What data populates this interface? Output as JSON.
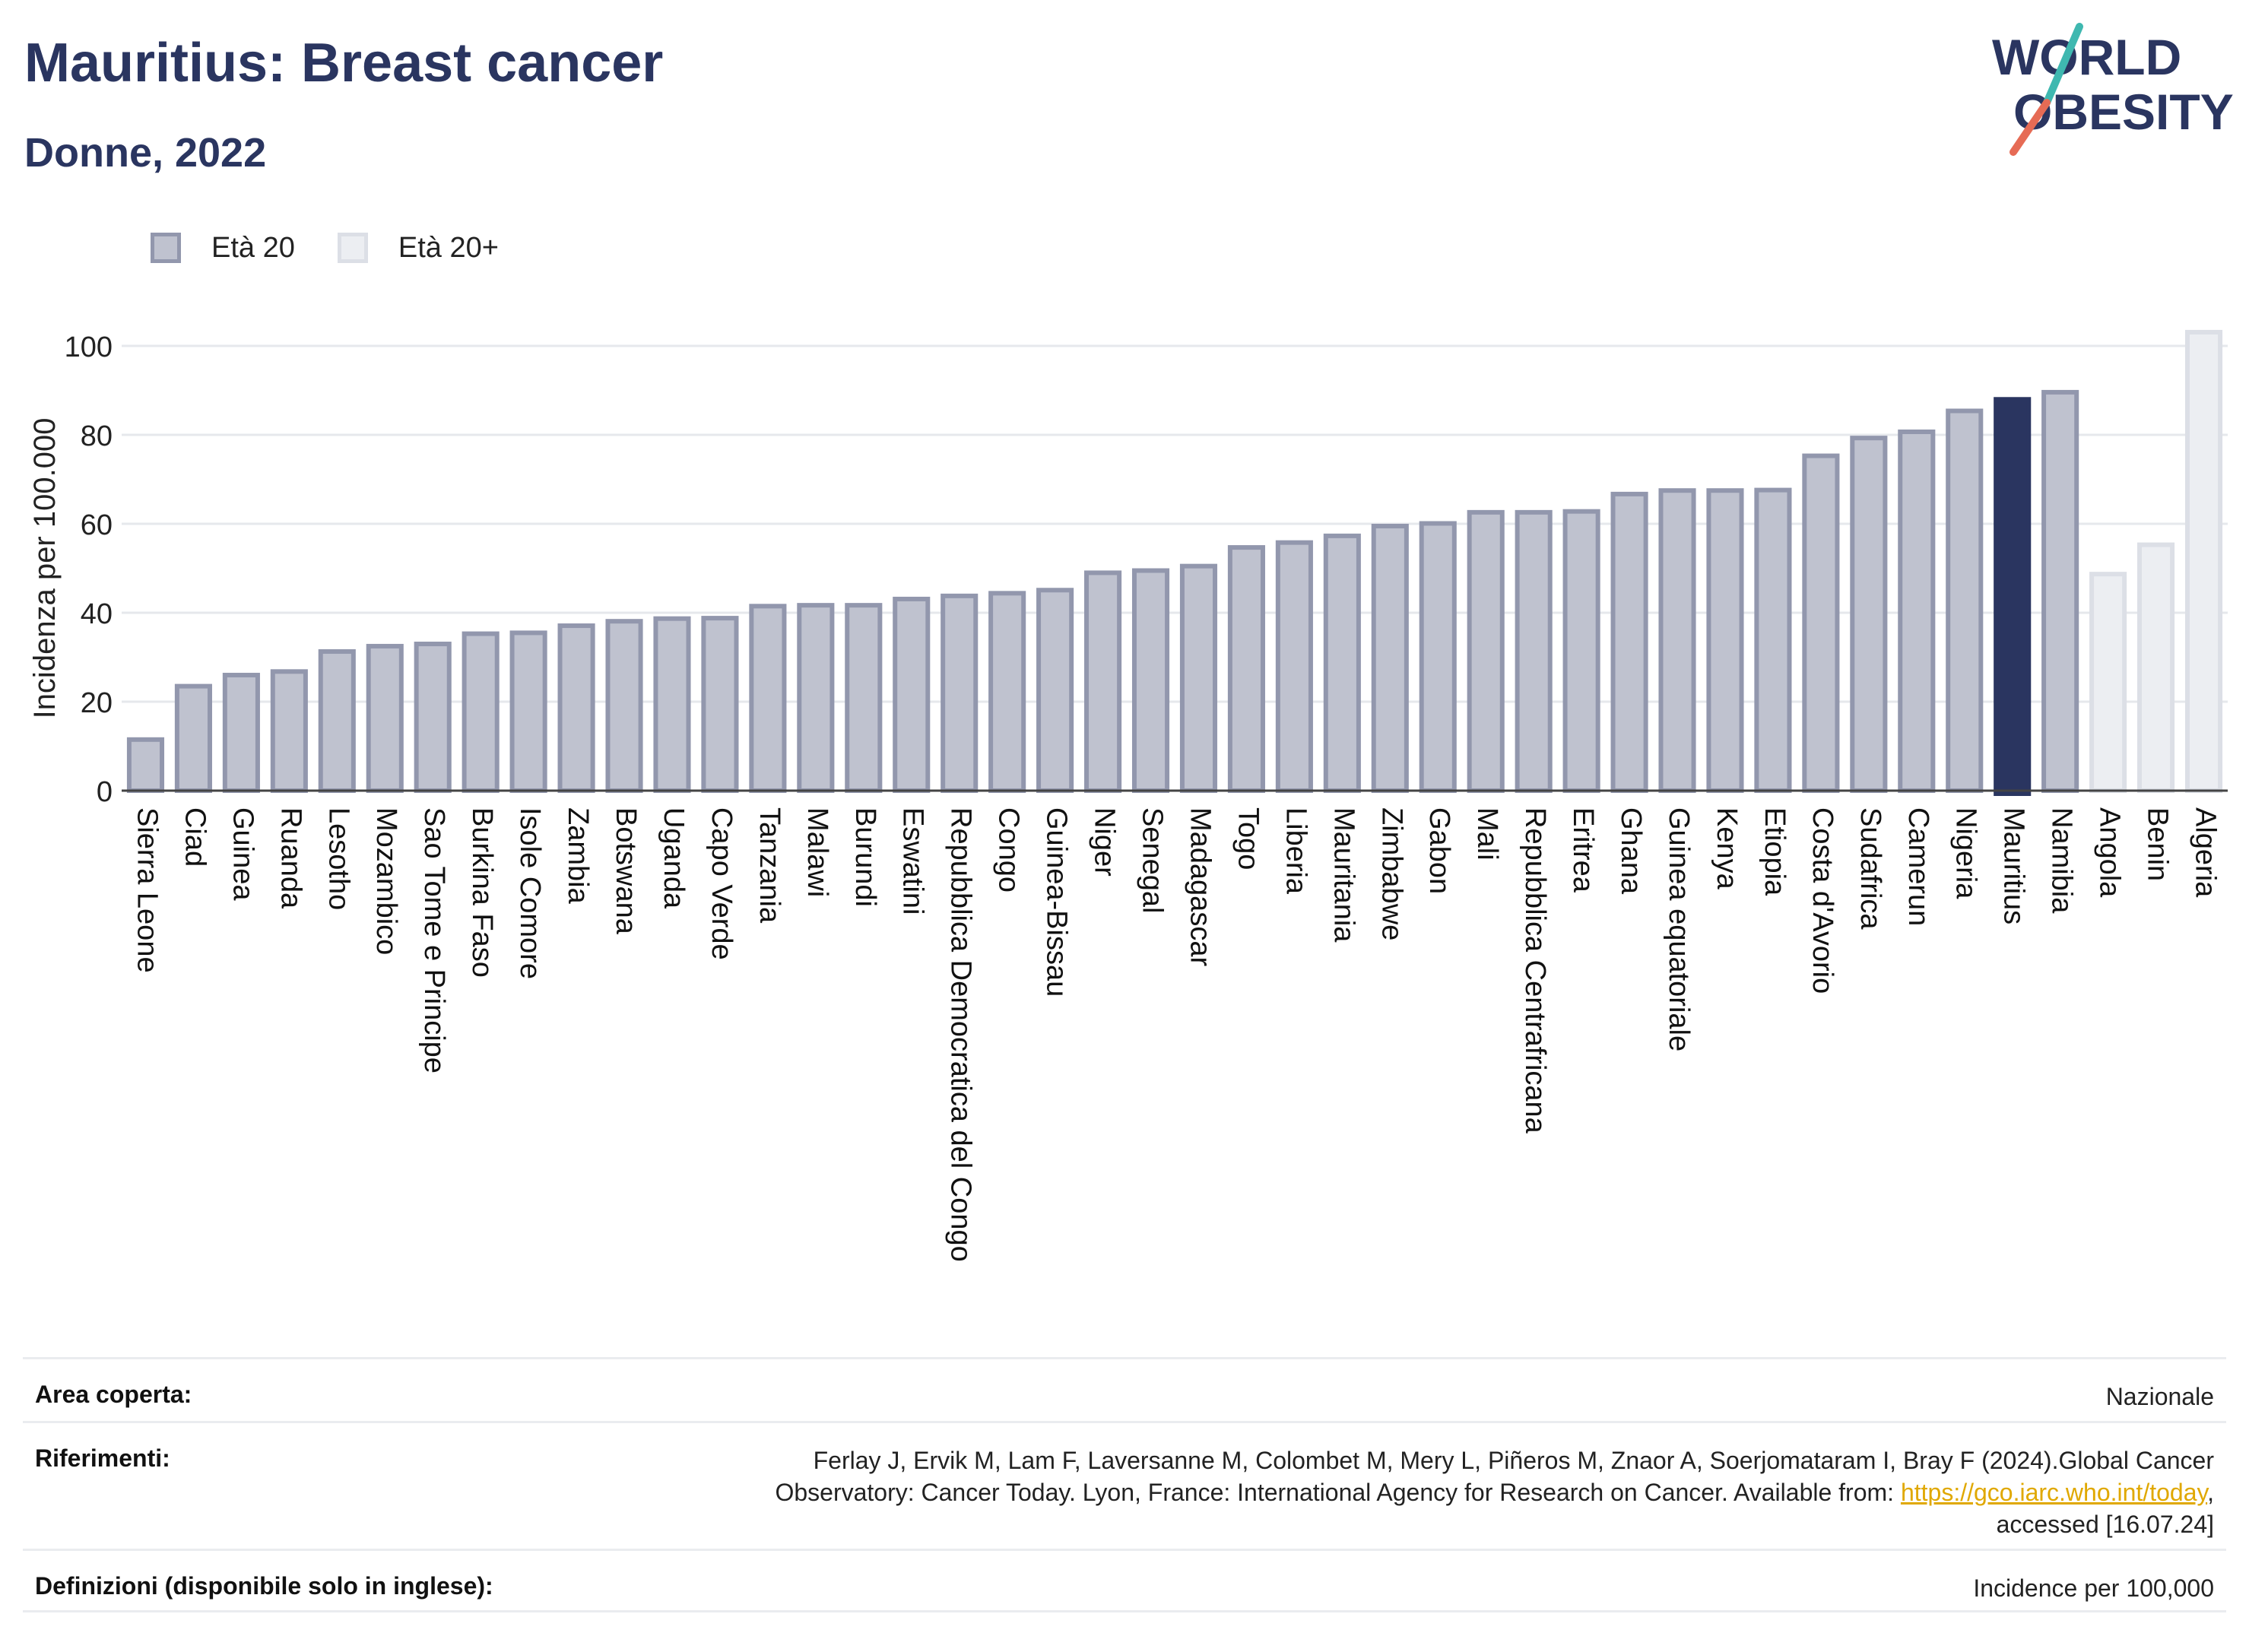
{
  "title": "Mauritius: Breast cancer",
  "subtitle": "Donne, 2022",
  "logo": {
    "line1": "WORLD",
    "line2": "OBESITY",
    "accent_colors": [
      "#e66b55",
      "#3fb8b0"
    ]
  },
  "colors": {
    "highlight": "#2a3560",
    "age20_fill": "#bfc2cf",
    "age20_border": "#9297ad",
    "age20plus_fill": "#eceef2",
    "age20plus_border": "#dcdfe6",
    "grid": "#e6e8ec",
    "axis": "#444444"
  },
  "legend": [
    {
      "label": "Età 20",
      "fill": "#bfc2cf",
      "border": "#9297ad"
    },
    {
      "label": "Età 20+",
      "fill": "#eceef2",
      "border": "#dcdfe6"
    }
  ],
  "chart_data": {
    "type": "bar",
    "ylabel": "Incidenza per 100.000",
    "xlabel": "",
    "ylim": [
      0,
      105
    ],
    "yticks": [
      0,
      20,
      40,
      60,
      80,
      100
    ],
    "grid": true,
    "legend_position": "top-left",
    "highlight": "Mauritius",
    "categories": [
      "Sierra Leone",
      "Ciad",
      "Guinea",
      "Ruanda",
      "Lesotho",
      "Mozambico",
      "Sao Tome e Principe",
      "Burkina Faso",
      "Isole Comore",
      "Zambia",
      "Botswana",
      "Uganda",
      "Capo Verde",
      "Tanzania",
      "Malawi",
      "Burundi",
      "Eswatini",
      "Repubblica Democratica del Congo",
      "Congo",
      "Guinea-Bissau",
      "Niger",
      "Senegal",
      "Madagascar",
      "Togo",
      "Liberia",
      "Mauritania",
      "Zimbabwe",
      "Gabon",
      "Mali",
      "Repubblica Centrafricana",
      "Eritrea",
      "Ghana",
      "Guinea equatoriale",
      "Kenya",
      "Etiopia",
      "Costa d'Avorio",
      "Sudafrica",
      "Camerun",
      "Nigeria",
      "Mauritius",
      "Namibia",
      "Angola",
      "Benin",
      "Algeria"
    ],
    "values": [
      12,
      24,
      26.5,
      27.3,
      31.8,
      33,
      33.5,
      35.8,
      36,
      37.6,
      38.6,
      39.2,
      39.3,
      42,
      42.2,
      42.2,
      43.6,
      44.3,
      44.9,
      45.6,
      49.5,
      50,
      51,
      55.2,
      56.3,
      57.8,
      60,
      60.6,
      63.1,
      63.1,
      63.3,
      67.2,
      68,
      68,
      68.1,
      75.8,
      79.8,
      81.2,
      85.9,
      88.5,
      90.1,
      49.2,
      55.8,
      103.6
    ],
    "series_type": [
      "Età 20",
      "Età 20",
      "Età 20",
      "Età 20",
      "Età 20",
      "Età 20",
      "Età 20",
      "Età 20",
      "Età 20",
      "Età 20",
      "Età 20",
      "Età 20",
      "Età 20",
      "Età 20",
      "Età 20",
      "Età 20",
      "Età 20",
      "Età 20",
      "Età 20",
      "Età 20",
      "Età 20",
      "Età 20",
      "Età 20",
      "Età 20",
      "Età 20",
      "Età 20",
      "Età 20",
      "Età 20",
      "Età 20",
      "Età 20",
      "Età 20",
      "Età 20",
      "Età 20",
      "Età 20",
      "Età 20",
      "Età 20",
      "Età 20",
      "Età 20",
      "Età 20",
      "Età 20",
      "Età 20",
      "Età 20+",
      "Età 20+",
      "Età 20+"
    ]
  },
  "footer": {
    "area_label": "Area coperta:",
    "area_value": "Nazionale",
    "refs_label": "Riferimenti:",
    "refs_line1": "Ferlay J, Ervik M, Lam F, Laversanne M, Colombet M, Mery L, Piñeros M, Znaor A, Soerjomataram I, Bray F (2024).Global Cancer",
    "refs_line2_pre": "Observatory: Cancer Today. Lyon, France: International Agency for Research on Cancer. Available from: ",
    "refs_link": "https://gco.iarc.who.int/today",
    "refs_line2_post": ",",
    "refs_line3": "accessed [16.07.24]",
    "defs_label": "Definizioni (disponibile solo in inglese):",
    "defs_value": "Incidence per 100,000"
  }
}
